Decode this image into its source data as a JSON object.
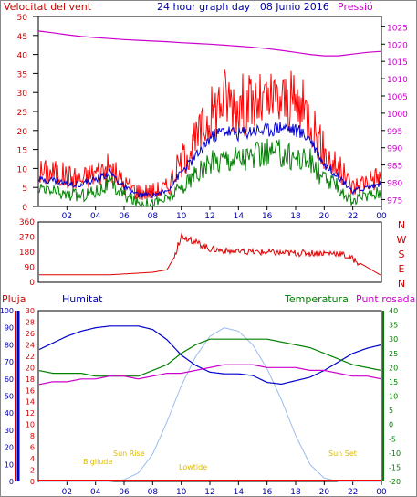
{
  "header": {
    "wind_label": "Velocitat del vent",
    "title": "24 hour graph day : 08 Junio 2016",
    "pressure_label": "Pressió"
  },
  "lower_header": {
    "rain_label": "Pluja",
    "humidity_label": "Humitat",
    "temperature_label": "Temperatura",
    "dewpoint_label": "Punt rosada"
  },
  "sun_labels": {
    "twilight_start": "Bigllude",
    "sunrise": "Sun Rise",
    "noon": "Lowtide",
    "sunset": "Sun Set"
  },
  "colors": {
    "wind": "#ff0000",
    "gust_avg": "#0000cc",
    "wind_low": "#008000",
    "pressure": "#cc00cc",
    "direction": "#dd0000",
    "humidity": "#0000cc",
    "temperature": "#008000",
    "dewpoint": "#cc00cc",
    "solar": "#99bbee",
    "rain": "#ff0000",
    "sun_text": "#ddbb00"
  },
  "chart_data": [
    {
      "id": "wind_pressure",
      "type": "line",
      "x_ticks": [
        "02",
        "04",
        "06",
        "08",
        "10",
        "12",
        "14",
        "16",
        "18",
        "20",
        "22",
        "00"
      ],
      "left_axis": {
        "ticks": [
          "0",
          "5",
          "10",
          "15",
          "20",
          "25",
          "30",
          "35",
          "40",
          "45",
          "50"
        ],
        "ylim": [
          0,
          50
        ]
      },
      "right_axis": {
        "ticks": [
          "975",
          "980",
          "985",
          "990",
          "995",
          "1000",
          "1005",
          "1010",
          "1015",
          "1020",
          "1025"
        ],
        "ylim": [
          973,
          1028
        ]
      },
      "x_hours": [
        0,
        1,
        2,
        3,
        4,
        5,
        6,
        7,
        8,
        9,
        10,
        11,
        12,
        13,
        14,
        15,
        16,
        17,
        18,
        19,
        20,
        21,
        22,
        23,
        24
      ],
      "series": [
        {
          "key": "gust",
          "values": [
            9,
            9,
            8,
            7,
            9,
            10,
            6,
            4,
            4,
            5,
            12,
            17,
            24,
            29,
            27,
            27,
            27,
            28,
            27,
            24,
            14,
            10,
            5,
            7,
            8
          ]
        },
        {
          "key": "avg",
          "values": [
            7,
            7,
            6,
            6,
            7,
            9,
            5,
            3,
            3,
            4,
            9,
            13,
            18,
            20,
            19,
            20,
            20,
            21,
            20,
            18,
            11,
            8,
            4,
            5,
            6
          ]
        },
        {
          "key": "low",
          "values": [
            4,
            4,
            3,
            3,
            4,
            6,
            3,
            1,
            1,
            2,
            5,
            8,
            11,
            13,
            13,
            13,
            14,
            14,
            13,
            12,
            7,
            5,
            1,
            3,
            4
          ]
        }
      ],
      "pressure": {
        "values": [
          1023.8,
          1023.3,
          1022.7,
          1022.2,
          1021.9,
          1021.6,
          1021.3,
          1021.1,
          1020.9,
          1020.7,
          1020.4,
          1020.2,
          1020.0,
          1019.7,
          1019.4,
          1019.1,
          1018.7,
          1018.2,
          1017.6,
          1017.0,
          1016.6,
          1016.6,
          1017.1,
          1017.6,
          1017.9
        ]
      }
    },
    {
      "id": "wind_direction",
      "type": "line",
      "left_axis": {
        "ticks": [
          "0",
          "90",
          "180",
          "270",
          "360"
        ],
        "ylim": [
          0,
          360
        ]
      },
      "right_axis": {
        "ticks": [
          "N",
          "W",
          "S",
          "E",
          "N"
        ]
      },
      "x_hours": [
        0,
        1,
        2,
        3,
        4,
        5,
        6,
        7,
        8,
        9,
        9.5,
        10,
        11,
        12,
        13,
        14,
        15,
        16,
        17,
        18,
        19,
        20,
        21,
        22,
        23,
        24
      ],
      "values": [
        45,
        45,
        45,
        45,
        45,
        45,
        50,
        55,
        60,
        75,
        150,
        280,
        240,
        200,
        190,
        180,
        180,
        180,
        175,
        175,
        175,
        175,
        175,
        140,
        90,
        40
      ]
    },
    {
      "id": "humidity_temp",
      "type": "line",
      "rain_axis": {
        "ticks": [
          "0",
          "2",
          "4",
          "6",
          "8",
          "10",
          "12",
          "14",
          "16",
          "18",
          "20",
          "22",
          "24",
          "26",
          "28",
          "30"
        ],
        "ylim": [
          0,
          30
        ]
      },
      "humidity_axis": {
        "ticks": [
          "0",
          "10",
          "20",
          "30",
          "40",
          "50",
          "60",
          "70",
          "80",
          "90",
          "100"
        ],
        "ylim": [
          0,
          100
        ]
      },
      "temp_axis": {
        "ticks": [
          "-20",
          "-15",
          "-10",
          "-5",
          "0",
          "5",
          "10",
          "15",
          "20",
          "25",
          "30",
          "35",
          "40"
        ],
        "ylim": [
          -20,
          40
        ]
      },
      "x_hours": [
        0,
        1,
        2,
        3,
        4,
        5,
        6,
        7,
        8,
        9,
        10,
        11,
        12,
        13,
        14,
        15,
        16,
        17,
        18,
        19,
        20,
        21,
        22,
        23,
        24
      ],
      "humidity": [
        77,
        81,
        85,
        88,
        90,
        91,
        91,
        91,
        89,
        83,
        74,
        68,
        64,
        63,
        63,
        62,
        58,
        57,
        59,
        61,
        65,
        70,
        75,
        78,
        80
      ],
      "temperature": [
        19,
        18,
        18,
        18,
        17,
        17,
        17,
        17,
        19,
        21,
        25,
        28,
        30,
        30,
        30,
        30,
        30,
        29,
        28,
        27,
        25,
        23,
        21,
        20,
        19
      ],
      "dewpoint": [
        14,
        15,
        15,
        16,
        16,
        17,
        17,
        16,
        17,
        18,
        18,
        19,
        20,
        21,
        21,
        21,
        20,
        20,
        20,
        19,
        19,
        18,
        17,
        17,
        16
      ],
      "solar": [
        0,
        0,
        0,
        0,
        0,
        0,
        1,
        5,
        16,
        35,
        56,
        73,
        85,
        90,
        88,
        80,
        66,
        48,
        27,
        10,
        2,
        0,
        0,
        0,
        0
      ],
      "rain": [
        0,
        0,
        0,
        0,
        0,
        0,
        0,
        0,
        0,
        0,
        0,
        0,
        0,
        0,
        0,
        0,
        0,
        0,
        0,
        0,
        0,
        0,
        0,
        0,
        0
      ]
    }
  ]
}
